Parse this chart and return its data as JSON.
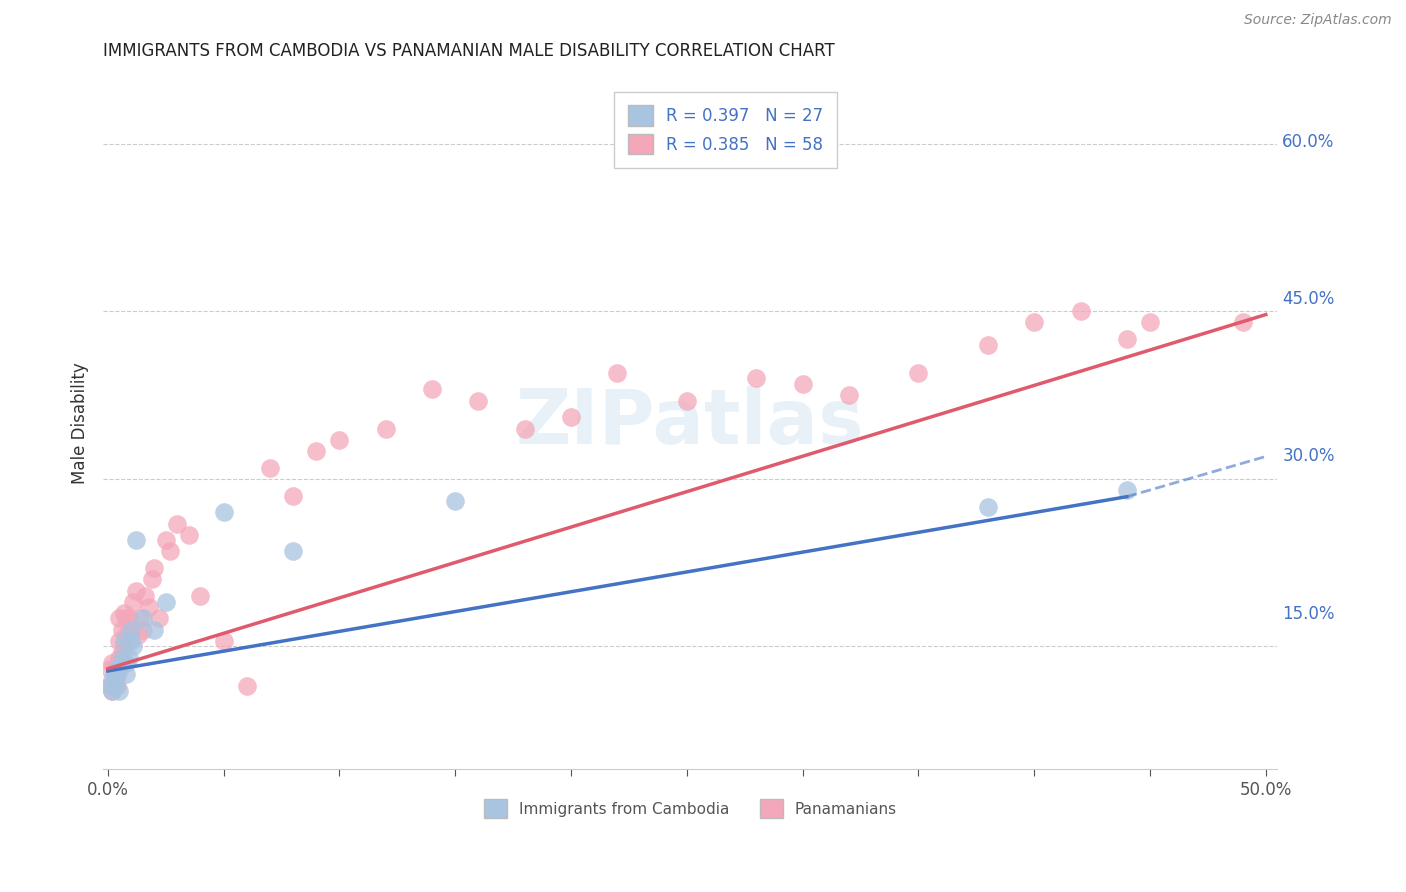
{
  "title": "IMMIGRANTS FROM CAMBODIA VS PANAMANIAN MALE DISABILITY CORRELATION CHART",
  "source": "Source: ZipAtlas.com",
  "ylabel": "Male Disability",
  "x_ticks": [
    0.0,
    0.05,
    0.1,
    0.15,
    0.2,
    0.25,
    0.3,
    0.35,
    0.4,
    0.45,
    0.5
  ],
  "x_tick_labels_show": {
    "0.0": "0.0%",
    "0.5": "50.0%"
  },
  "y_ticks_right": [
    0.0,
    0.15,
    0.3,
    0.45,
    0.6
  ],
  "y_tick_labels_right": [
    "",
    "15.0%",
    "30.0%",
    "45.0%",
    "60.0%"
  ],
  "xlim": [
    -0.002,
    0.505
  ],
  "ylim": [
    0.04,
    0.66
  ],
  "legend_label_cambodia": "R = 0.397   N = 27",
  "legend_label_panama": "R = 0.385   N = 58",
  "bottom_legend_cambodia": "Immigrants from Cambodia",
  "bottom_legend_panama": "Panamanians",
  "scatter_color_cambodia": "#a8c4e0",
  "scatter_color_panama": "#f4a7b9",
  "line_color_cambodia": "#4472c4",
  "line_color_panama": "#e05a6e",
  "watermark": "ZIPatlas",
  "cambodia_x": [
    0.001,
    0.002,
    0.002,
    0.003,
    0.003,
    0.004,
    0.004,
    0.005,
    0.005,
    0.006,
    0.006,
    0.007,
    0.008,
    0.008,
    0.009,
    0.01,
    0.01,
    0.011,
    0.012,
    0.015,
    0.02,
    0.025,
    0.05,
    0.08,
    0.15,
    0.38,
    0.44
  ],
  "cambodia_y": [
    0.115,
    0.12,
    0.11,
    0.115,
    0.125,
    0.13,
    0.125,
    0.11,
    0.13,
    0.135,
    0.14,
    0.155,
    0.135,
    0.125,
    0.14,
    0.155,
    0.165,
    0.15,
    0.245,
    0.175,
    0.165,
    0.19,
    0.27,
    0.235,
    0.28,
    0.275,
    0.29
  ],
  "panama_x": [
    0.001,
    0.001,
    0.002,
    0.002,
    0.003,
    0.003,
    0.004,
    0.004,
    0.005,
    0.005,
    0.005,
    0.006,
    0.006,
    0.007,
    0.007,
    0.008,
    0.008,
    0.009,
    0.009,
    0.01,
    0.011,
    0.012,
    0.013,
    0.014,
    0.015,
    0.016,
    0.018,
    0.019,
    0.02,
    0.022,
    0.025,
    0.027,
    0.03,
    0.035,
    0.04,
    0.05,
    0.06,
    0.07,
    0.08,
    0.09,
    0.1,
    0.12,
    0.14,
    0.16,
    0.18,
    0.2,
    0.22,
    0.25,
    0.28,
    0.3,
    0.32,
    0.35,
    0.38,
    0.4,
    0.42,
    0.44,
    0.45,
    0.49
  ],
  "panama_y": [
    0.115,
    0.13,
    0.11,
    0.135,
    0.12,
    0.13,
    0.125,
    0.115,
    0.14,
    0.155,
    0.175,
    0.145,
    0.165,
    0.15,
    0.18,
    0.16,
    0.175,
    0.155,
    0.175,
    0.165,
    0.19,
    0.2,
    0.16,
    0.175,
    0.165,
    0.195,
    0.185,
    0.21,
    0.22,
    0.175,
    0.245,
    0.235,
    0.26,
    0.25,
    0.195,
    0.155,
    0.115,
    0.31,
    0.285,
    0.325,
    0.335,
    0.345,
    0.38,
    0.37,
    0.345,
    0.355,
    0.395,
    0.37,
    0.39,
    0.385,
    0.375,
    0.395,
    0.42,
    0.44,
    0.45,
    0.425,
    0.44,
    0.44
  ],
  "trend_cambodia_start_x": 0.0,
  "trend_cambodia_end_solid_x": 0.44,
  "trend_cambodia_end_dash_x": 0.5,
  "trend_cambodia_start_y": 0.128,
  "trend_cambodia_end_solid_y": 0.284,
  "trend_cambodia_end_dash_y": 0.32,
  "trend_panama_start_x": 0.0,
  "trend_panama_end_x": 0.5,
  "trend_panama_start_y": 0.13,
  "trend_panama_end_y": 0.447
}
